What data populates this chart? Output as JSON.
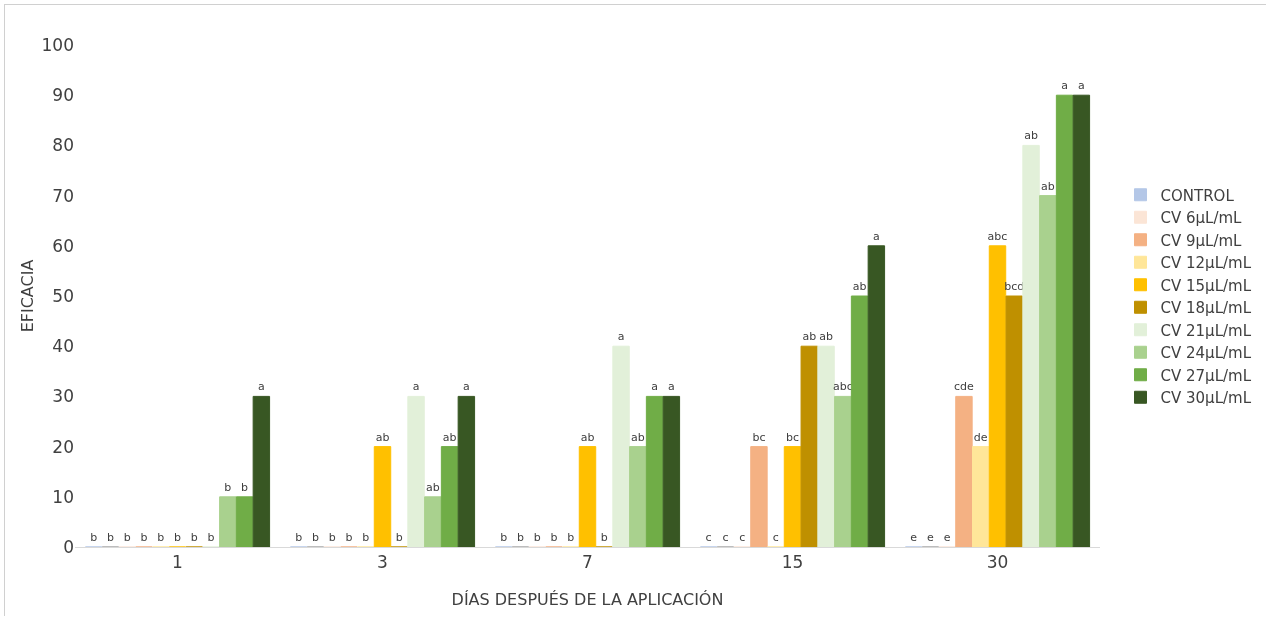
{
  "chart_data": {
    "type": "bar",
    "xlabel": "DÍAS DESPUÉS DE LA APLICACIÓN",
    "ylabel": "EFICACIA",
    "categories": [
      "1",
      "3",
      "7",
      "15",
      "30"
    ],
    "ylim": [
      0,
      100
    ],
    "yticks": [
      0,
      10,
      20,
      30,
      40,
      50,
      60,
      70,
      80,
      90,
      100
    ],
    "grid": false,
    "legend": "right",
    "series": [
      {
        "name": "CONTROL",
        "color": "#b4c7e7",
        "values": [
          0,
          0,
          0,
          0,
          0
        ],
        "value_labels": [
          "b",
          "b",
          "b",
          "c",
          "e"
        ]
      },
      {
        "color": "#a6a6a6",
        "values": [
          0,
          0,
          0,
          0,
          0
        ],
        "value_labels": [
          "b",
          "b",
          "b",
          "c",
          "e"
        ]
      },
      {
        "name": "CV 6μL/mL",
        "color": "#fbe5d6",
        "values": [
          0,
          0,
          0,
          0,
          0
        ],
        "value_labels": [
          "b",
          "b",
          "b",
          "c",
          "e"
        ]
      },
      {
        "name": "CV 9μL/mL",
        "color": "#f4b183",
        "values": [
          0,
          0,
          0,
          20,
          30
        ],
        "value_labels": [
          "b",
          "b",
          "b",
          "bc",
          "cde"
        ]
      },
      {
        "name": "CV 12μL/mL",
        "color": "#ffe699",
        "values": [
          0,
          0,
          0,
          0,
          20
        ],
        "value_labels": [
          "b",
          "b",
          "b",
          "c",
          "de"
        ]
      },
      {
        "name": "CV 15μL/mL",
        "color": "#ffc000",
        "values": [
          0,
          20,
          20,
          20,
          60
        ],
        "value_labels": [
          "b",
          "ab",
          "ab",
          "bc",
          "abc"
        ]
      },
      {
        "name": "CV 18μL/mL",
        "color": "#bf9000",
        "values": [
          0,
          0,
          0,
          40,
          50
        ],
        "value_labels": [
          "b",
          "b",
          "b",
          "ab",
          "bcd"
        ]
      },
      {
        "name": "CV 21μL/mL",
        "color": "#e2f0d9",
        "values": [
          0,
          30,
          40,
          40,
          80
        ],
        "value_labels": [
          "b",
          "a",
          "a",
          "ab",
          "ab"
        ]
      },
      {
        "name": "CV 24μL/mL",
        "color": "#a9d18e",
        "values": [
          10,
          10,
          20,
          30,
          70
        ],
        "value_labels": [
          "b",
          "ab",
          "ab",
          "abc",
          "ab"
        ]
      },
      {
        "name": "CV 27μL/mL",
        "color": "#70ad47",
        "values": [
          10,
          20,
          30,
          50,
          90
        ],
        "value_labels": [
          "b",
          "ab",
          "a",
          "ab",
          "a"
        ]
      },
      {
        "name": "CV 30μL/mL",
        "color": "#385723",
        "values": [
          30,
          30,
          30,
          60,
          90
        ],
        "value_labels": [
          "a",
          "a",
          "a",
          "a",
          "a"
        ]
      }
    ]
  }
}
